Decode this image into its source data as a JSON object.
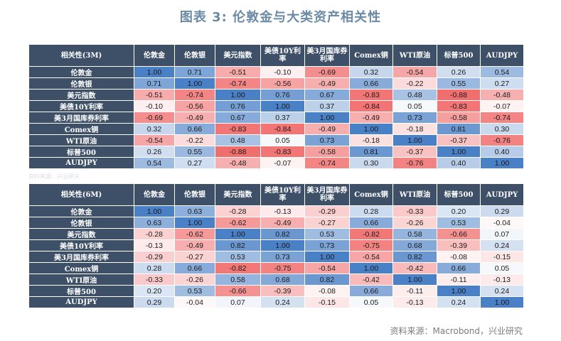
{
  "title": "图表 3:  伦敦金与大类资产相关性",
  "source": "资料来源：Macrobond，兴业研究",
  "note": "资料来源：兴业研究",
  "colors": {
    "header_bg": "#3e5068",
    "positive": "#4a80c6",
    "negative": "#ef5a5a",
    "neutral": "#ffffff"
  },
  "chart_data": [
    {
      "type": "heatmap",
      "title": "相关性(3M)",
      "columns": [
        "伦敦金",
        "伦敦银",
        "美元指数",
        "美债10Y利率",
        "美3月国库券利率",
        "Comex铜",
        "WTI原油",
        "标普500",
        "AUDJPY"
      ],
      "rows": [
        "伦敦金",
        "伦敦银",
        "美元指数",
        "美债10Y利率",
        "美3月国库券利率",
        "Comex铜",
        "WTI原油",
        "标普500",
        "AUDJPY"
      ],
      "values": [
        [
          "1.00",
          "0.71",
          "-0.51",
          "-0.10",
          "-0.69",
          "0.32",
          "-0.54",
          "0.26",
          "0.54"
        ],
        [
          "0.71",
          "1.00",
          "-0.74",
          "-0.56",
          "-0.49",
          "0.66",
          "-0.22",
          "0.55",
          "0.27"
        ],
        [
          "-0.51",
          "-0.74",
          "1.00",
          "0.76",
          "0.67",
          "-0.83",
          "0.48",
          "-0.88",
          "-0.48"
        ],
        [
          "-0.10",
          "-0.56",
          "0.76",
          "1.00",
          "0.37",
          "-0.84",
          "0.05",
          "-0.83",
          "-0.07"
        ],
        [
          "-0.69",
          "-0.49",
          "0.67",
          "0.37",
          "1.00",
          "-0.49",
          "0.73",
          "-0.58",
          "-0.74"
        ],
        [
          "0.32",
          "0.66",
          "-0.83",
          "-0.84",
          "-0.49",
          "1.00",
          "-0.18",
          "0.81",
          "0.30"
        ],
        [
          "-0.54",
          "-0.22",
          "0.48",
          "0.05",
          "0.73",
          "-0.18",
          "1.00",
          "-0.37",
          "-0.76"
        ],
        [
          "0.26",
          "0.55",
          "-0.88",
          "-0.83",
          "-0.58",
          "0.81",
          "-0.37",
          "1.00",
          "0.40"
        ],
        [
          "0.54",
          "0.27",
          "-0.48",
          "-0.07",
          "-0.74",
          "0.30",
          "-0.76",
          "0.40",
          "1.00"
        ]
      ]
    },
    {
      "type": "heatmap",
      "title": "相关性(6M)",
      "columns": [
        "伦敦金",
        "伦敦银",
        "美元指数",
        "美债10Y利率",
        "美3月国库券利率",
        "Comex铜",
        "WTI原油",
        "标普500",
        "AUDJPY"
      ],
      "rows": [
        "伦敦金",
        "伦敦银",
        "美元指数",
        "美债10Y利率",
        "美3月国库券利率",
        "Comex铜",
        "WTI原油",
        "标普500",
        "AUDJPY"
      ],
      "values": [
        [
          "1.00",
          "0.63",
          "-0.28",
          "-0.13",
          "-0.29",
          "0.28",
          "-0.33",
          "0.20",
          "0.29"
        ],
        [
          "0.63",
          "1.00",
          "-0.62",
          "-0.49",
          "-0.27",
          "0.66",
          "-0.26",
          "0.53",
          "-0.04"
        ],
        [
          "-0.28",
          "-0.62",
          "1.00",
          "0.82",
          "0.53",
          "-0.82",
          "0.58",
          "-0.66",
          "0.07"
        ],
        [
          "-0.13",
          "-0.49",
          "0.82",
          "1.00",
          "0.73",
          "-0.75",
          "0.68",
          "-0.39",
          "0.24"
        ],
        [
          "-0.29",
          "-0.27",
          "0.53",
          "0.73",
          "1.00",
          "-0.54",
          "0.82",
          "-0.08",
          "-0.15"
        ],
        [
          "0.28",
          "0.66",
          "-0.82",
          "-0.75",
          "-0.54",
          "1.00",
          "-0.42",
          "0.66",
          "0.05"
        ],
        [
          "-0.33",
          "-0.26",
          "0.58",
          "0.68",
          "0.82",
          "-0.42",
          "1.00",
          "-0.11",
          "-0.13"
        ],
        [
          "0.20",
          "0.53",
          "-0.66",
          "-0.39",
          "-0.08",
          "0.66",
          "-0.11",
          "1.00",
          "0.24"
        ],
        [
          "0.29",
          "-0.04",
          "0.07",
          "0.24",
          "-0.15",
          "0.05",
          "-0.13",
          "0.24",
          "1.00"
        ]
      ]
    }
  ]
}
